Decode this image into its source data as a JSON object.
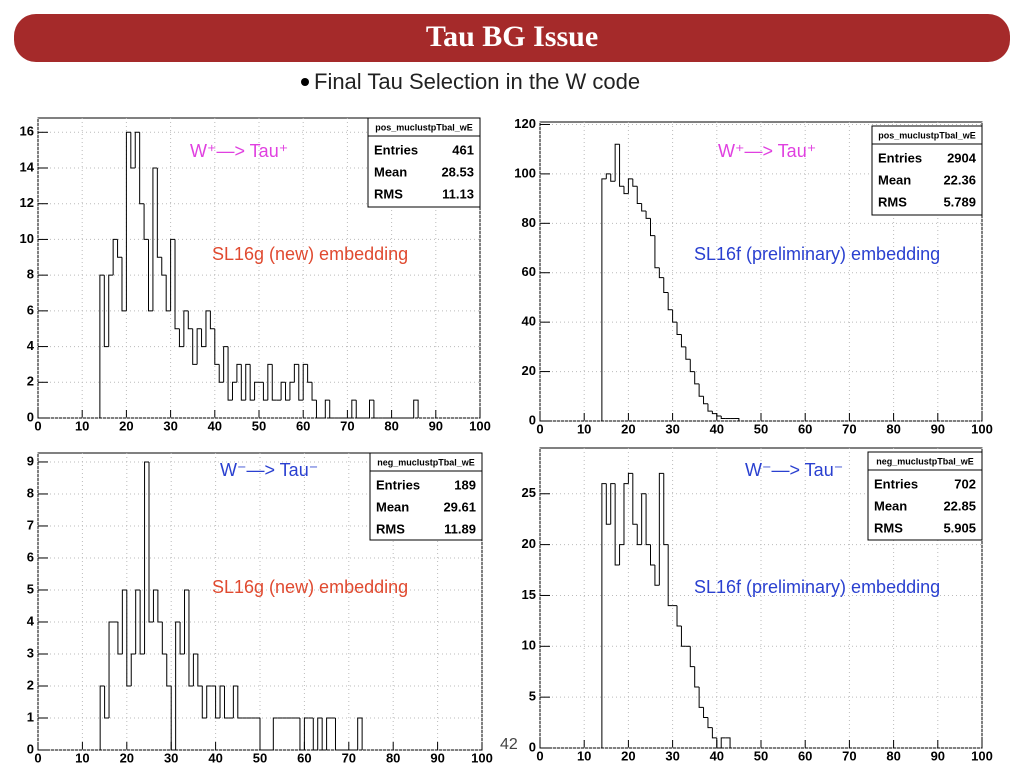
{
  "header": {
    "title": "Tau BG Issue"
  },
  "bullet": "Final Tau Selection in the W code",
  "page_number": "42",
  "chart_data": [
    {
      "type": "histogram",
      "stats_name": "pos_muclustpTbal_wE",
      "stats_labels": [
        "Entries",
        "Mean",
        "RMS"
      ],
      "stats_values": [
        461,
        28.53,
        11.13
      ],
      "annotations": [
        "W⁺—> Tau⁺",
        "SL16g (new) embedding"
      ],
      "annotation_colors": [
        "#e040e0",
        "#e04a30"
      ],
      "xlim": [
        0,
        100
      ],
      "xticks": [
        0,
        10,
        20,
        30,
        40,
        50,
        60,
        70,
        80,
        90,
        100
      ],
      "ylim": [
        0,
        16.8
      ],
      "yticks": [
        0,
        2,
        4,
        6,
        8,
        10,
        12,
        14,
        16
      ],
      "grid": true,
      "color": "#000000",
      "bins": [
        14,
        15,
        16,
        17,
        18,
        19,
        20,
        21,
        22,
        23,
        24,
        25,
        26,
        27,
        28,
        29,
        30,
        31,
        32,
        33,
        34,
        35,
        36,
        37,
        38,
        39,
        40,
        41,
        42,
        43,
        44,
        45,
        46,
        47,
        48,
        49,
        50,
        51,
        52,
        53,
        54,
        55,
        56,
        57,
        58,
        59,
        60,
        61,
        62,
        63,
        64,
        65,
        66,
        67,
        68,
        69,
        70,
        71,
        72,
        73,
        74,
        75,
        76,
        77,
        78,
        79,
        80,
        81,
        82,
        83,
        84,
        85,
        86
      ],
      "values": [
        8,
        4,
        8,
        10,
        9,
        6,
        16,
        14,
        16,
        12,
        10,
        6,
        14,
        9,
        8,
        6,
        10,
        5,
        4,
        6,
        5,
        3,
        5,
        4,
        6,
        5,
        3,
        2,
        4,
        1,
        2,
        3,
        1,
        3,
        1,
        2,
        2,
        1,
        3,
        1,
        1,
        2,
        1,
        2,
        3,
        1,
        3,
        2,
        1,
        0,
        0,
        1,
        0,
        0,
        0,
        0,
        0,
        1,
        0,
        0,
        0,
        1,
        0,
        0,
        0,
        0,
        0,
        0,
        0,
        0,
        0,
        1
      ]
    },
    {
      "type": "histogram",
      "stats_name": "pos_muclustpTbal_wE",
      "stats_labels": [
        "Entries",
        "Mean",
        "RMS"
      ],
      "stats_values": [
        2904,
        22.36,
        5.789
      ],
      "annotations": [
        "W⁺—> Tau⁺",
        "SL16f (preliminary) embedding"
      ],
      "annotation_colors": [
        "#e040e0",
        "#2a40d0"
      ],
      "xlim": [
        0,
        100
      ],
      "xticks": [
        0,
        10,
        20,
        30,
        40,
        50,
        60,
        70,
        80,
        90,
        100
      ],
      "ylim": [
        0,
        121
      ],
      "yticks": [
        0,
        20,
        40,
        60,
        80,
        100,
        120
      ],
      "grid": true,
      "color": "#000000",
      "bins": [
        14,
        15,
        16,
        17,
        18,
        19,
        20,
        21,
        22,
        23,
        24,
        25,
        26,
        27,
        28,
        29,
        30,
        31,
        32,
        33,
        34,
        35,
        36,
        37,
        38,
        39,
        40,
        41,
        42,
        43,
        44,
        45
      ],
      "values": [
        98,
        100,
        97,
        112,
        95,
        92,
        98,
        95,
        88,
        85,
        82,
        75,
        62,
        58,
        52,
        45,
        40,
        35,
        30,
        25,
        20,
        15,
        10,
        7,
        4,
        3,
        2,
        1,
        1,
        1,
        1
      ]
    },
    {
      "type": "histogram",
      "stats_name": "neg_muclustpTbal_wE",
      "stats_labels": [
        "Entries",
        "Mean",
        "RMS"
      ],
      "stats_values": [
        189,
        29.61,
        11.89
      ],
      "annotations": [
        "W⁻—> Tau⁻",
        "SL16g (new) embedding"
      ],
      "annotation_colors": [
        "#2a40d0",
        "#e04a30"
      ],
      "xlim": [
        0,
        100
      ],
      "xticks": [
        0,
        10,
        20,
        30,
        40,
        50,
        60,
        70,
        80,
        90,
        100
      ],
      "ylim": [
        0,
        9.28
      ],
      "yticks": [
        0,
        1,
        2,
        3,
        4,
        5,
        6,
        7,
        8,
        9
      ],
      "grid": true,
      "color": "#000000",
      "bins": [
        14,
        15,
        16,
        17,
        18,
        19,
        20,
        21,
        22,
        23,
        24,
        25,
        26,
        27,
        28,
        29,
        30,
        31,
        32,
        33,
        34,
        35,
        36,
        37,
        38,
        39,
        40,
        41,
        42,
        43,
        44,
        45,
        46,
        47,
        48,
        49,
        50,
        51,
        52,
        53,
        54,
        55,
        56,
        57,
        58,
        59,
        60,
        61,
        62,
        63,
        64,
        65,
        66,
        67,
        68,
        69,
        70,
        71,
        72,
        73
      ],
      "values": [
        2,
        1,
        4,
        4,
        3,
        5,
        2,
        3,
        5,
        3,
        9,
        4,
        5,
        4,
        3,
        2,
        0,
        4,
        3,
        5,
        2,
        3,
        2,
        1,
        2,
        2,
        1,
        2,
        1,
        1,
        2,
        1,
        1,
        1,
        1,
        1,
        0,
        0,
        0,
        1,
        1,
        1,
        1,
        1,
        1,
        0,
        1,
        1,
        0,
        1,
        0,
        1,
        1,
        0,
        0,
        0,
        0,
        0,
        1
      ]
    },
    {
      "type": "histogram",
      "stats_name": "neg_muclustpTbal_wE",
      "stats_labels": [
        "Entries",
        "Mean",
        "RMS"
      ],
      "stats_values": [
        702,
        22.85,
        5.905
      ],
      "annotations": [
        "W⁻—> Tau⁻",
        "SL16f (preliminary) embedding"
      ],
      "annotation_colors": [
        "#2a40d0",
        "#2a40d0"
      ],
      "xlim": [
        0,
        100
      ],
      "xticks": [
        0,
        10,
        20,
        30,
        40,
        50,
        60,
        70,
        80,
        90,
        100
      ],
      "ylim": [
        0,
        29.5
      ],
      "yticks": [
        0,
        5,
        10,
        15,
        20,
        25
      ],
      "grid": true,
      "color": "#000000",
      "bins": [
        14,
        15,
        16,
        17,
        18,
        19,
        20,
        21,
        22,
        23,
        24,
        25,
        26,
        27,
        28,
        29,
        30,
        31,
        32,
        33,
        34,
        35,
        36,
        37,
        38,
        39,
        40,
        41,
        42,
        43
      ],
      "values": [
        26,
        22,
        26,
        18,
        20,
        26,
        27,
        22,
        20,
        25,
        20,
        18,
        16,
        27,
        20,
        14,
        14,
        12,
        10,
        10,
        8,
        6,
        4,
        3,
        2,
        1,
        0,
        1,
        1
      ]
    }
  ]
}
